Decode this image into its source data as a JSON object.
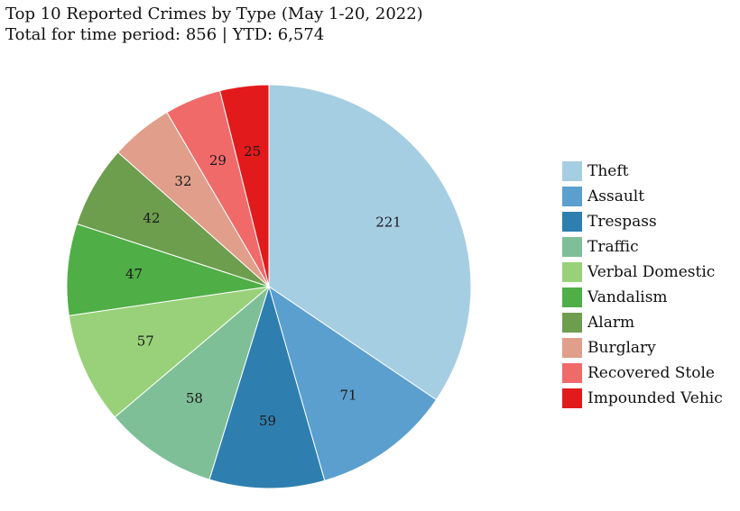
{
  "header": {
    "title": "Top 10 Reported Crimes by Type (May 1-20, 2022)",
    "subtitle": "Total for time period: 856 | YTD: 6,574"
  },
  "chart_data": {
    "type": "pie",
    "title": "Top 10 Reported Crimes by Type (May 1-20, 2022)",
    "subtitle": "Total for time period: 856 | YTD: 6,574",
    "legend_position": "right",
    "start_angle": "12 o'clock",
    "direction": "clockwise",
    "categories": [
      "Theft",
      "Assault",
      "Trespass",
      "Traffic",
      "Verbal Domestic",
      "Vandalism",
      "Alarm",
      "Burglary",
      "Recovered Stole",
      "Impounded Vehic"
    ],
    "values": [
      221,
      71,
      59,
      58,
      57,
      47,
      42,
      32,
      29,
      25
    ],
    "colors": [
      "#a6cee3",
      "#5b9fcf",
      "#2e7fb0",
      "#7fbf98",
      "#99d17a",
      "#4fae46",
      "#6c9e4d",
      "#e09e8b",
      "#f06a6a",
      "#e31a1c"
    ]
  }
}
